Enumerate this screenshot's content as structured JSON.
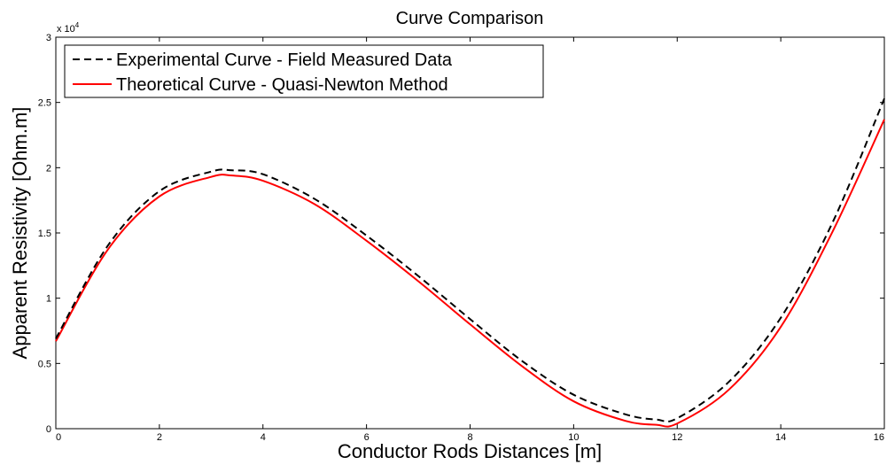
{
  "chart_data": {
    "type": "line",
    "title": "Curve Comparison",
    "xlabel": "Conductor Rods Distances [m]",
    "ylabel": "Apparent Resistivity [Ohm.m]",
    "y_exponent_label": "x 10",
    "y_exponent_power": "4",
    "xlim": [
      0,
      16
    ],
    "ylim": [
      0,
      30000
    ],
    "x_ticks": [
      0,
      2,
      4,
      6,
      8,
      10,
      12,
      14,
      16
    ],
    "x_tick_labels": [
      "0",
      "2",
      "4",
      "6",
      "8",
      "10",
      "12",
      "14",
      "16"
    ],
    "y_ticks": [
      0,
      5000,
      10000,
      15000,
      20000,
      25000,
      30000
    ],
    "y_tick_labels": [
      "0",
      "0.5",
      "1",
      "1.5",
      "2",
      "2.5",
      "3"
    ],
    "grid": false,
    "legend_position": "top-left",
    "x": [
      0,
      1,
      2,
      3,
      3.4,
      4,
      5,
      6,
      7,
      8,
      9,
      10,
      11,
      11.6,
      12,
      13,
      14,
      15,
      16
    ],
    "series": [
      {
        "name": "Experimental Curve - Field Measured Data",
        "color": "#000000",
        "dash": "dashed",
        "values": [
          6900,
          14000,
          18200,
          19700,
          19800,
          19500,
          17600,
          14800,
          11700,
          8400,
          5200,
          2600,
          1100,
          700,
          800,
          3600,
          8500,
          15800,
          25300
        ]
      },
      {
        "name": "Theoretical Curve - Quasi-Newton Method",
        "color": "#ff0000",
        "dash": "solid",
        "values": [
          6700,
          13700,
          17800,
          19300,
          19400,
          19000,
          17200,
          14400,
          11300,
          8000,
          4800,
          2100,
          600,
          300,
          400,
          3000,
          7800,
          15100,
          23700
        ]
      }
    ]
  }
}
